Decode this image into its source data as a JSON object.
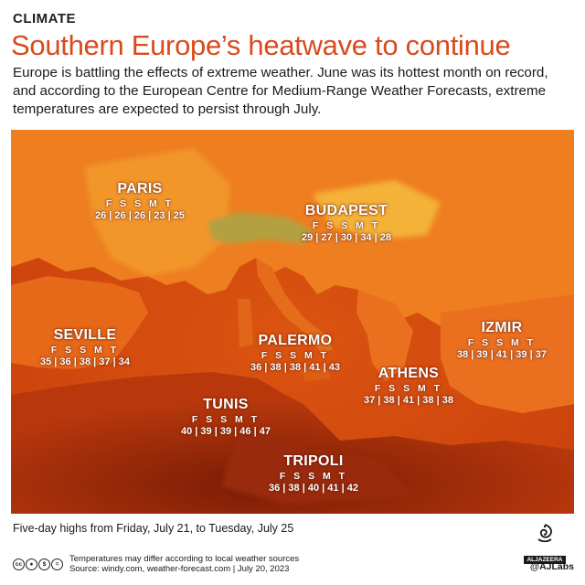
{
  "header": {
    "kicker": "CLIMATE",
    "title": "Southern Europe’s heatwave to continue",
    "lede": "Europe is battling the effects of extreme weather. June was its hottest month on record, and according to the European Centre for Medium-Range Weather Forecasts, extreme temperatures are expected to persist through July."
  },
  "cities": [
    {
      "name": "PARIS",
      "days": "F S S M T",
      "temps": "26 | 26 | 26 | 23 | 25"
    },
    {
      "name": "BUDAPEST",
      "days": "F S S M T",
      "temps": "29 | 27 | 30 | 34 | 28"
    },
    {
      "name": "SEVILLE",
      "days": "F S S M T",
      "temps": "35 | 36 | 38 | 37 | 34"
    },
    {
      "name": "PALERMO",
      "days": "F S S M T",
      "temps": "36 | 38 | 38 | 41 | 43"
    },
    {
      "name": "IZMIR",
      "days": "F S S M T",
      "temps": "38 | 39 | 41 | 39 | 37"
    },
    {
      "name": "ATHENS",
      "days": "F S S M T",
      "temps": "37 | 38 | 41 | 38 | 38"
    },
    {
      "name": "TUNIS",
      "days": "F S S M T",
      "temps": "40 | 39 | 39 | 46 | 47"
    },
    {
      "name": "TRIPOLI",
      "days": "F S S M T",
      "temps": "36 | 38 | 40 | 41 | 42"
    }
  ],
  "caption": "Five-day highs from Friday, July 21, to Tuesday, July 25",
  "footer": {
    "note": "Temperatures may differ according to local weather sources",
    "source": "Source: windy.com, weather-forecast.com  |  July 20, 2023",
    "handle": "@AJLabs",
    "logo_text": "ALJAZEERA"
  },
  "map_colors": {
    "sea": "#d0440c",
    "land_hot": "#ec7a1c",
    "land_warm": "#f29a2a",
    "land_cool": "#f7c24a",
    "alps": "#a8a646",
    "desert": "#8a2208"
  },
  "icons": [
    "cc-icon",
    "by-icon",
    "nc-icon",
    "nd-icon",
    "aljazeera-logo-icon"
  ]
}
